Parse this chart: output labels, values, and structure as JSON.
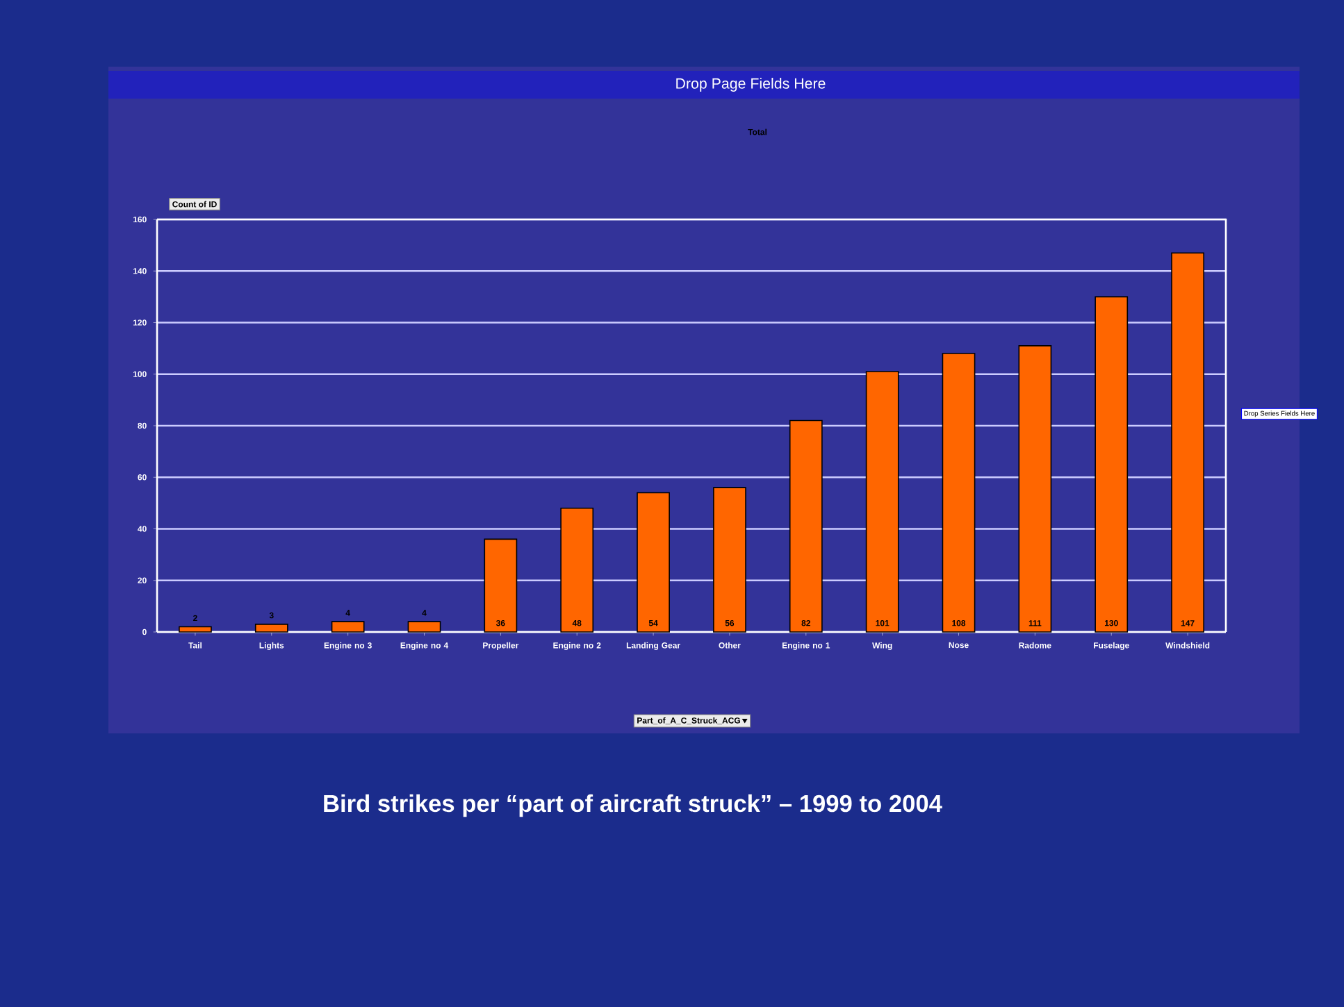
{
  "chart_data": {
    "type": "bar",
    "title": "Total",
    "categories": [
      "Tail",
      "Lights",
      "Engine no 3",
      "Engine no 4",
      "Propeller",
      "Engine no 2",
      "Landing Gear",
      "Other",
      "Engine no 1",
      "Wing",
      "Nose",
      "Radome",
      "Fuselage",
      "Windshield"
    ],
    "values": [
      2,
      3,
      4,
      4,
      36,
      48,
      54,
      56,
      82,
      101,
      108,
      111,
      130,
      147
    ],
    "color": "#ff6600",
    "ylim": [
      0,
      160
    ],
    "yticks": [
      0,
      20,
      40,
      60,
      80,
      100,
      120,
      140,
      160
    ],
    "grid": "y",
    "data_labels": true,
    "annotations": [
      "Drop Page Fields Here",
      "Count of ID",
      "Part_of_A_C_Struck_ACG",
      "Drop Series Fields Here",
      "Bird strikes per “part of aircraft struck” – 1999 to 2004"
    ]
  }
}
